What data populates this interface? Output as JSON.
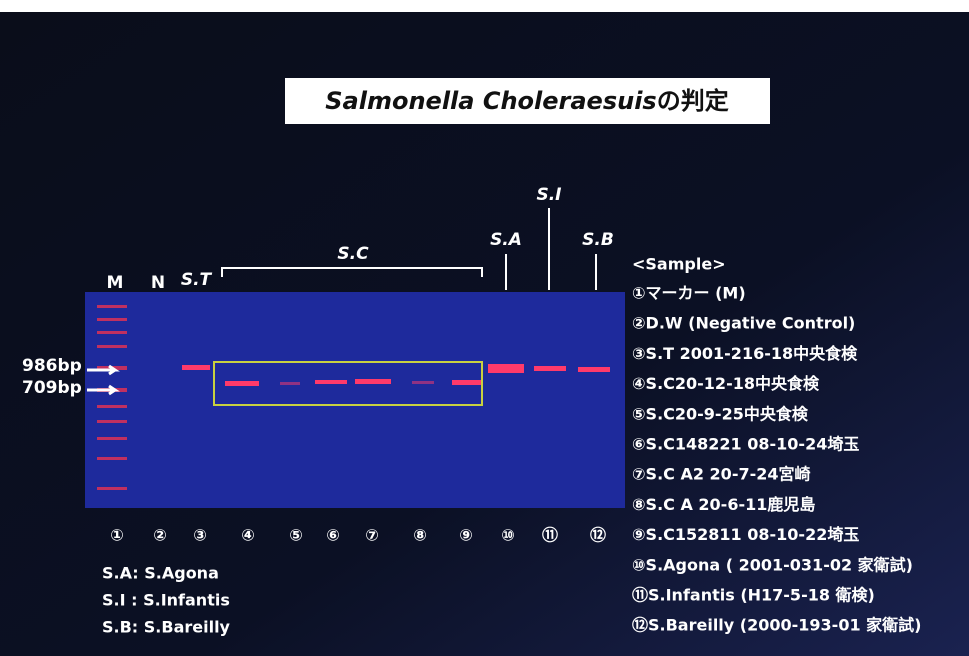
{
  "title": {
    "italic": "Salmonella Choleraesuis",
    "rest": "の判定"
  },
  "lane_labels": [
    "M",
    "N",
    "S.T",
    "S.C",
    "S.A",
    "S.I",
    "S.B"
  ],
  "marker_labels": [
    "986bp",
    "709bp"
  ],
  "lane_numbers": [
    "①",
    "②",
    "③",
    "④",
    "⑤",
    "⑥",
    "⑦",
    "⑧",
    "⑨",
    "⑩",
    "⑪",
    "⑫"
  ],
  "legend": [
    "S.A: S.Agona",
    "S.I : S.Infantis",
    "S.B: S.Bareilly"
  ],
  "sample_header": "<Sample>",
  "samples": [
    "①マーカー (M)",
    "②D.W (Negative Control)",
    "③S.T 2001-216-18中央食検",
    "④S.C20-12-18中央食検",
    "⑤S.C20-9-25中央食検",
    "⑥S.C148221 08-10-24埼玉",
    "⑦S.C A2 20-7-24宮崎",
    "⑧S.C A 20-6-11鹿児島",
    "⑨S.C152811 08-10-22埼玉",
    "⑩S.Agona ( 2001-031-02 家衛試)",
    "⑪S.Infantis (H17-5-18 衛検)",
    "⑫S.Bareilly (2000-193-01 家衛試)"
  ]
}
